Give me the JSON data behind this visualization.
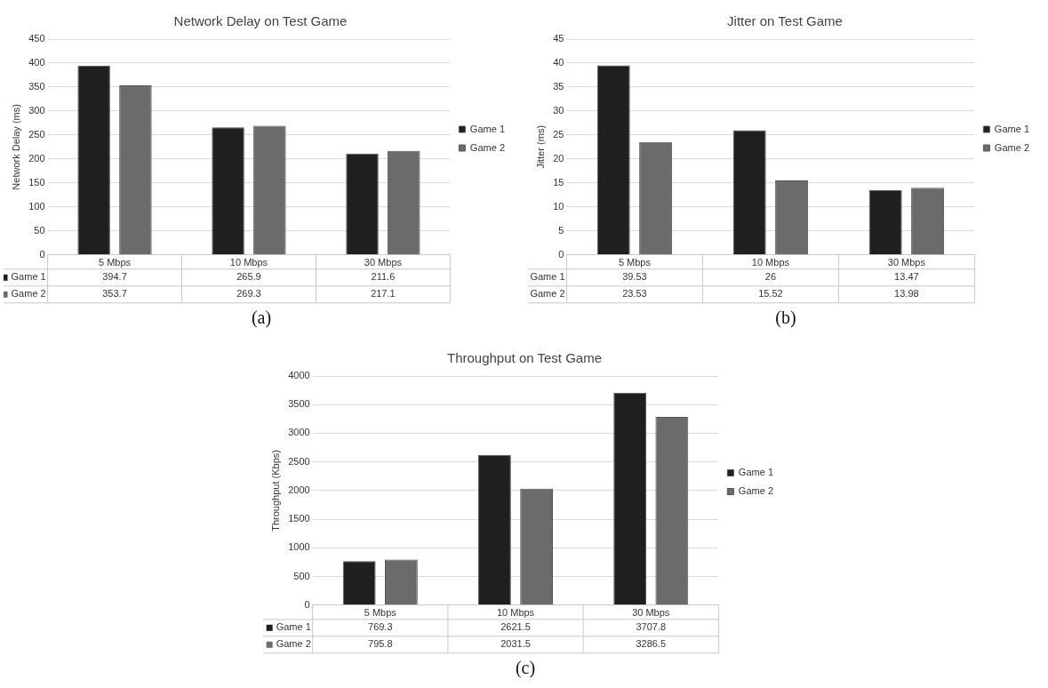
{
  "chart_data": [
    {
      "type": "bar",
      "title": "Network Delay on Test Game",
      "ylabel": "Network Delay (ms)",
      "categories": [
        "5 Mbps",
        "10 Mbps",
        "30 Mbps"
      ],
      "series": [
        {
          "name": "Game 1",
          "color": "#1f1f1f",
          "values": [
            394.7,
            265.9,
            211.6
          ]
        },
        {
          "name": "Game 2",
          "color": "#6b6b6b",
          "values": [
            353.7,
            269.3,
            217.1
          ]
        }
      ],
      "ylim": [
        0,
        450
      ],
      "yticks": [
        0,
        50,
        100,
        150,
        200,
        250,
        300,
        350,
        400,
        450
      ],
      "grid": "y",
      "legend": "right",
      "data_labels": true,
      "annotations": [
        "(a)"
      ]
    },
    {
      "type": "bar",
      "title": "Jitter on Test Game",
      "ylabel": "Jitter (ms)",
      "categories": [
        "5 Mbps",
        "10 Mbps",
        "30 Mbps"
      ],
      "series": [
        {
          "name": "Game 1",
          "color": "#1f1f1f",
          "values": [
            39.53,
            26,
            13.47
          ]
        },
        {
          "name": "Game 2",
          "color": "#6b6b6b",
          "values": [
            23.53,
            15.52,
            13.98
          ]
        }
      ],
      "ylim": [
        0,
        45
      ],
      "yticks": [
        0,
        5,
        10,
        15,
        20,
        25,
        30,
        35,
        40,
        45
      ],
      "grid": "y",
      "legend": "right",
      "data_labels": true,
      "annotations": [
        "(b)"
      ]
    },
    {
      "type": "bar",
      "title": "Throughput on Test Game",
      "ylabel": "Throughput (Kbps)",
      "categories": [
        "5 Mbps",
        "10 Mbps",
        "30 Mbps"
      ],
      "series": [
        {
          "name": "Game 1",
          "color": "#1f1f1f",
          "values": [
            769.3,
            2621.5,
            3707.8
          ]
        },
        {
          "name": "Game 2",
          "color": "#6b6b6b",
          "values": [
            795.8,
            2031.5,
            3286.5
          ]
        }
      ],
      "ylim": [
        0,
        4000
      ],
      "yticks": [
        0,
        500,
        1000,
        1500,
        2000,
        2500,
        3000,
        3500,
        4000
      ],
      "grid": "y",
      "legend": "right",
      "data_labels": true,
      "annotations": [
        "(c)"
      ]
    }
  ]
}
